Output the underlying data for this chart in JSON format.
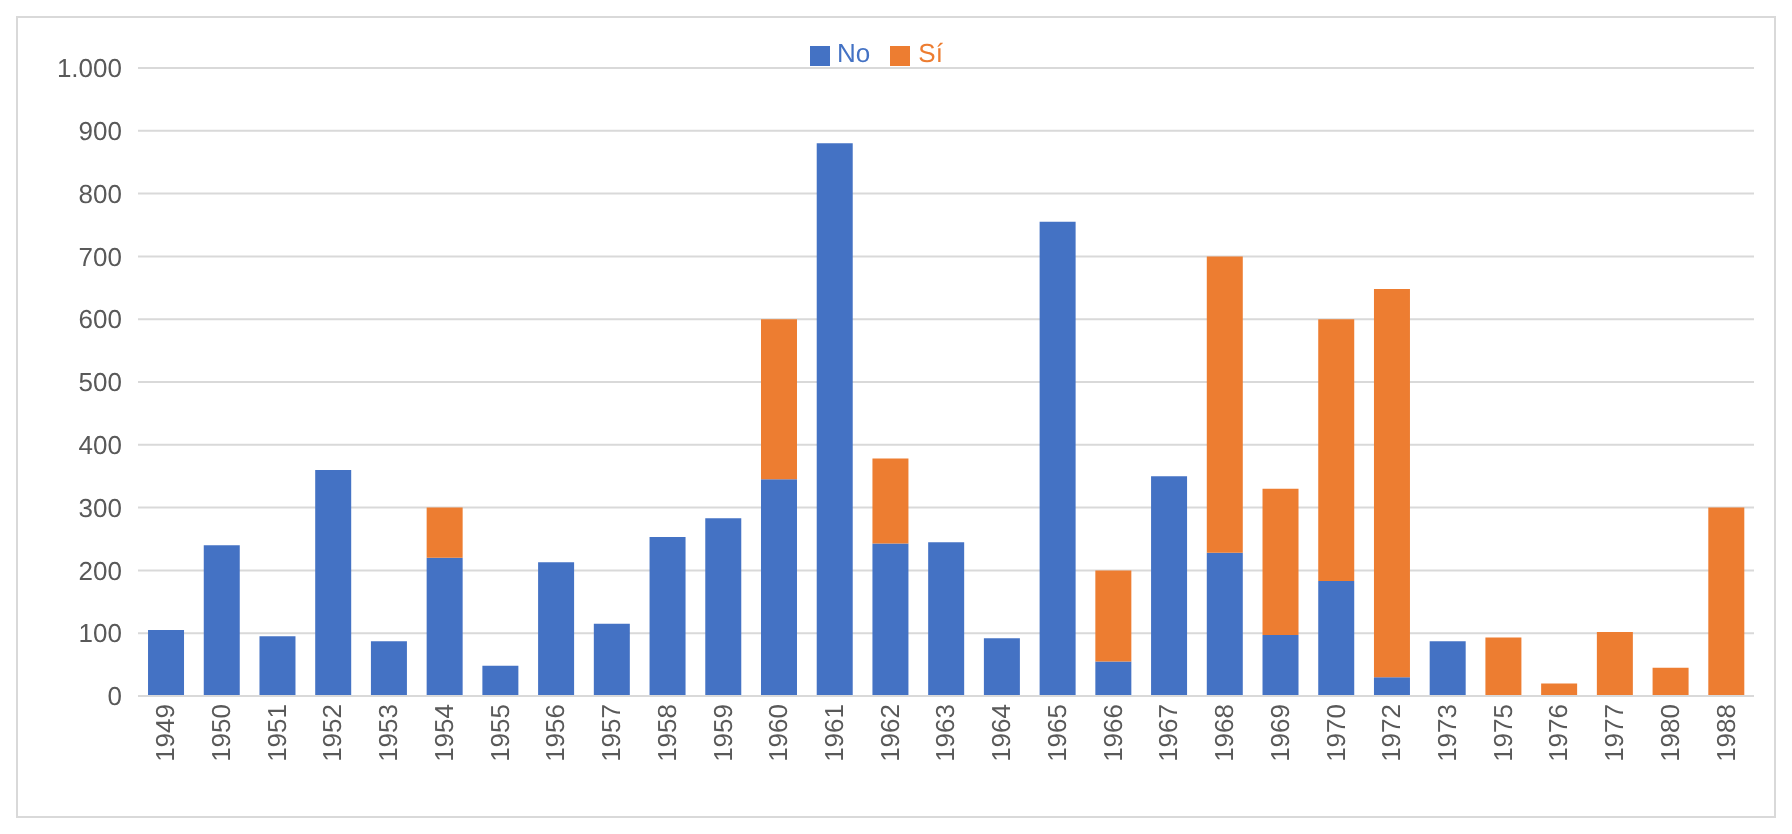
{
  "chart_data": {
    "type": "bar",
    "stacked": true,
    "categories": [
      "1949",
      "1950",
      "1951",
      "1952",
      "1953",
      "1954",
      "1955",
      "1956",
      "1957",
      "1958",
      "1959",
      "1960",
      "1961",
      "1962",
      "1963",
      "1964",
      "1965",
      "1966",
      "1967",
      "1968",
      "1969",
      "1970",
      "1972",
      "1973",
      "1975",
      "1976",
      "1977",
      "1980",
      "1988"
    ],
    "series": [
      {
        "name": "No",
        "color": "#4472c4",
        "values": [
          105,
          240,
          95,
          360,
          87,
          220,
          48,
          213,
          115,
          253,
          283,
          345,
          880,
          243,
          245,
          92,
          755,
          55,
          350,
          228,
          97,
          183,
          30,
          87,
          0,
          0,
          0,
          0,
          0
        ]
      },
      {
        "name": "Sí",
        "color": "#ed7d31",
        "values": [
          0,
          0,
          0,
          0,
          0,
          80,
          0,
          0,
          0,
          0,
          0,
          255,
          0,
          135,
          0,
          0,
          0,
          145,
          0,
          472,
          233,
          417,
          618,
          0,
          93,
          20,
          102,
          45,
          300
        ]
      }
    ],
    "ylim": [
      0,
      1000
    ],
    "yticks": [
      0,
      100,
      200,
      300,
      400,
      500,
      600,
      700,
      800,
      900,
      {
        "value": 1000,
        "label": "1.000"
      }
    ],
    "grid": "y",
    "legend": "top"
  }
}
